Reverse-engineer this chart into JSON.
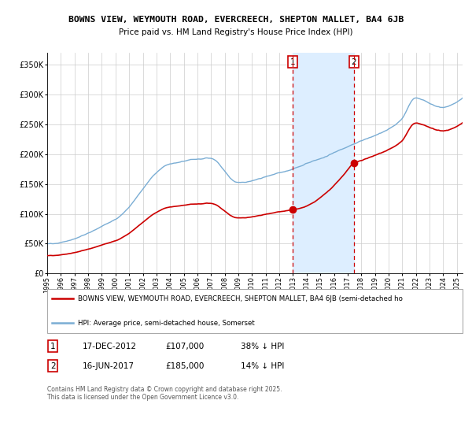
{
  "title1": "BOWNS VIEW, WEYMOUTH ROAD, EVERCREECH, SHEPTON MALLET, BA4 6JB",
  "title2": "Price paid vs. HM Land Registry's House Price Index (HPI)",
  "legend1": "BOWNS VIEW, WEYMOUTH ROAD, EVERCREECH, SHEPTON MALLET, BA4 6JB (semi-detached ho",
  "legend2": "HPI: Average price, semi-detached house, Somerset",
  "sale1_label": "1",
  "sale1_date": "17-DEC-2012",
  "sale1_price": "£107,000",
  "sale1_pct": "38% ↓ HPI",
  "sale1_yr": 2012.958,
  "sale1_val": 107000,
  "sale2_label": "2",
  "sale2_date": "16-JUN-2017",
  "sale2_price": "£185,000",
  "sale2_pct": "14% ↓ HPI",
  "sale2_yr": 2017.458,
  "sale2_val": 185000,
  "copyright": "Contains HM Land Registry data © Crown copyright and database right 2025.\nThis data is licensed under the Open Government Licence v3.0.",
  "hpi_color": "#7aadd4",
  "price_color": "#cc0000",
  "shade_color": "#ddeeff",
  "grid_color": "#cccccc",
  "ylim_max": 370000,
  "yticks": [
    0,
    50000,
    100000,
    150000,
    200000,
    250000,
    300000,
    350000
  ],
  "ytick_labels": [
    "£0",
    "£50K",
    "£100K",
    "£150K",
    "£200K",
    "£250K",
    "£300K",
    "£350K"
  ]
}
